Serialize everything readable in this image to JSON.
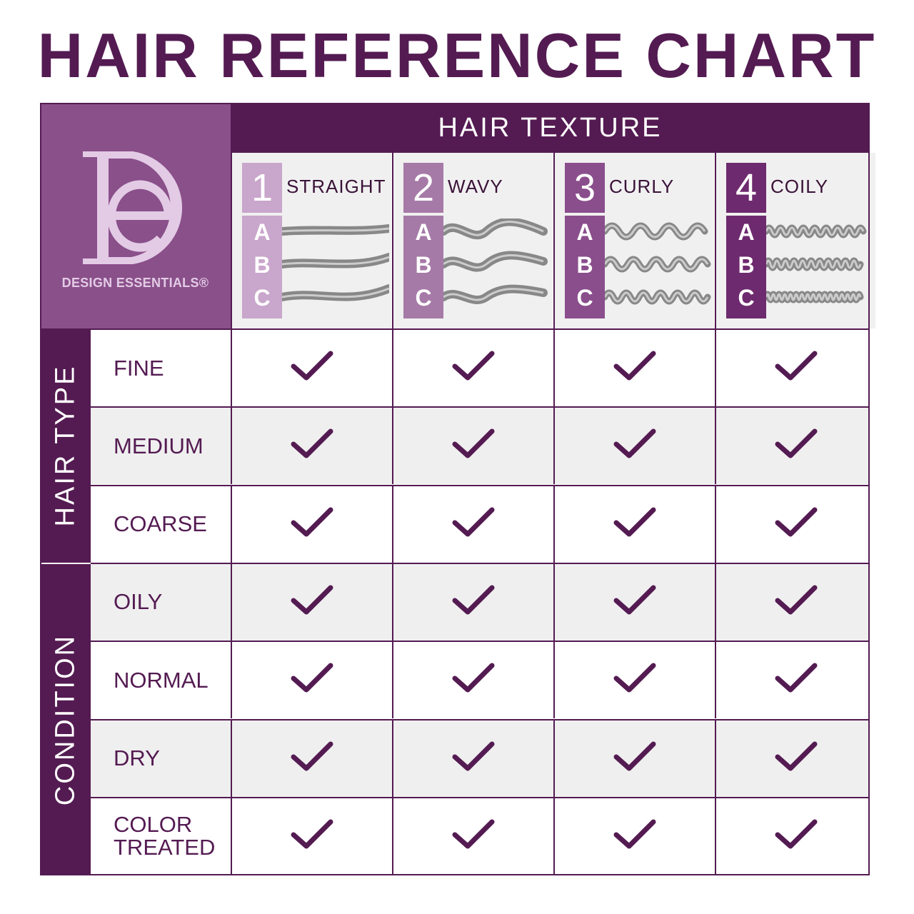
{
  "chart_data": {
    "type": "table",
    "title": "HAIR REFERENCE CHART",
    "column_group_label": "HAIR TEXTURE",
    "columns": [
      {
        "number": "1",
        "name": "STRAIGHT",
        "subtypes": [
          "A",
          "B",
          "C"
        ],
        "color": "#c9a6cb"
      },
      {
        "number": "2",
        "name": "WAVY",
        "subtypes": [
          "A",
          "B",
          "C"
        ],
        "color": "#a67aa7"
      },
      {
        "number": "3",
        "name": "CURLY",
        "subtypes": [
          "A",
          "B",
          "C"
        ],
        "color": "#8a4e8c"
      },
      {
        "number": "4",
        "name": "COILY",
        "subtypes": [
          "A",
          "B",
          "C"
        ],
        "color": "#6e2a6e"
      }
    ],
    "row_groups": [
      {
        "label": "HAIR TYPE",
        "rows": [
          {
            "label": "FINE",
            "values": [
              true,
              true,
              true,
              true
            ]
          },
          {
            "label": "MEDIUM",
            "values": [
              true,
              true,
              true,
              true
            ]
          },
          {
            "label": "COARSE",
            "values": [
              true,
              true,
              true,
              true
            ]
          }
        ]
      },
      {
        "label": "CONDITION",
        "rows": [
          {
            "label": "OILY",
            "values": [
              true,
              true,
              true,
              true
            ]
          },
          {
            "label": "NORMAL",
            "values": [
              true,
              true,
              true,
              true
            ]
          },
          {
            "label": "DRY",
            "values": [
              true,
              true,
              true,
              true
            ]
          },
          {
            "label": "COLOR\nTREATED",
            "values": [
              true,
              true,
              true,
              true
            ]
          }
        ]
      }
    ]
  },
  "logo": {
    "monogram": "DE",
    "brand": "DESIGN ESSENTIALS®"
  },
  "colors": {
    "primary": "#541b52",
    "logo_bg": "#8a508a",
    "logo_fg": "#e3cbe5",
    "row_alt": "#efefef"
  },
  "icons": {
    "check": "checkmark-icon"
  }
}
